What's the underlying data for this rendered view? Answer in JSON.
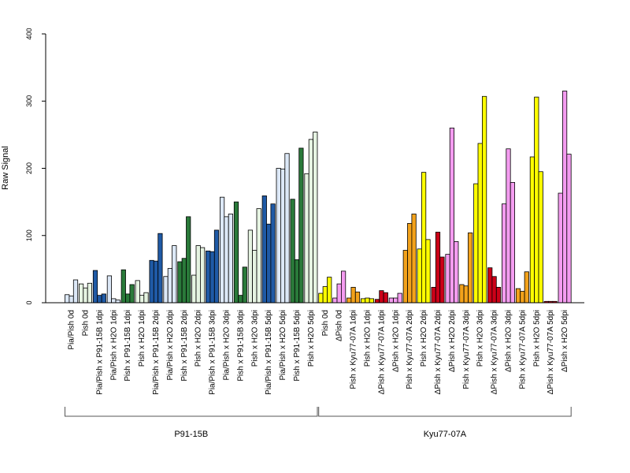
{
  "chart_data": {
    "type": "bar",
    "ylabel": "Raw Signal",
    "ylim": [
      0,
      400
    ],
    "yticks": [
      "0",
      "100",
      "200",
      "300",
      "400"
    ],
    "bars_per_group": 3,
    "colors": {
      "blue": "#1f5aa6",
      "light_blue": "#dce8f7",
      "green": "#2a7a3a",
      "light_green": "#e6f4e2",
      "yellow": "#ffff00",
      "orange": "#f3a21b",
      "red": "#cc0018",
      "pink": "#f49cf0"
    },
    "categories": [
      {
        "label": "Pia/Pish 0d",
        "color": "light_blue",
        "values": [
          12,
          10,
          34
        ]
      },
      {
        "label": "Pish 0d",
        "color": "light_green",
        "values": [
          28,
          22,
          29
        ]
      },
      {
        "label": "Pia/Pish x P91-15B 1dpi",
        "color": "blue",
        "values": [
          48,
          11,
          13
        ]
      },
      {
        "label": "Pia/Pish x H2O 1dpi",
        "color": "light_blue",
        "values": [
          40,
          6,
          4
        ]
      },
      {
        "label": "Pish x P91-15B 1dpi",
        "color": "green",
        "values": [
          49,
          13,
          27
        ]
      },
      {
        "label": "Pish x H2O 1dpi",
        "color": "light_green",
        "values": [
          33,
          11,
          15
        ]
      },
      {
        "label": "Pia/Pish x P91-15B 2dpi",
        "color": "blue",
        "values": [
          63,
          62,
          103
        ]
      },
      {
        "label": "Pia/Pish x H2O 2dpi",
        "color": "light_blue",
        "values": [
          39,
          51,
          85
        ]
      },
      {
        "label": "Pish x P91-15B 2dpi",
        "color": "green",
        "values": [
          61,
          66,
          128
        ]
      },
      {
        "label": "Pish x H2O 2dpi",
        "color": "light_green",
        "values": [
          41,
          85,
          82
        ]
      },
      {
        "label": "Pia/Pish x P91-15B 3dpi",
        "color": "blue",
        "values": [
          77,
          76,
          108
        ]
      },
      {
        "label": "Pia/Pish x H2O 3dpi",
        "color": "light_blue",
        "values": [
          157,
          128,
          132
        ]
      },
      {
        "label": "Pish x P91-15B 3dpi",
        "color": "green",
        "values": [
          150,
          11,
          53
        ]
      },
      {
        "label": "Pish x H2O 3dpi",
        "color": "light_green",
        "values": [
          108,
          78,
          140
        ]
      },
      {
        "label": "Pia/Pish x P91-15B 5dpi",
        "color": "blue",
        "values": [
          159,
          117,
          147
        ]
      },
      {
        "label": "Pia/Pish x H2O 5dpi",
        "color": "light_blue",
        "values": [
          200,
          199,
          222
        ]
      },
      {
        "label": "Pish x P91-15B 5dpi",
        "color": "green",
        "values": [
          154,
          64,
          230
        ]
      },
      {
        "label": "Pish x H2O 5dpi",
        "color": "light_green",
        "values": [
          192,
          243,
          254
        ]
      },
      {
        "label": "Pish 0d",
        "color": "yellow",
        "values": [
          14,
          24,
          38
        ]
      },
      {
        "label": "ΔPish 0d",
        "color": "pink",
        "values": [
          7,
          28,
          47
        ]
      },
      {
        "label": "Pish x Kyu77-07A 1dpi",
        "color": "orange",
        "values": [
          7,
          23,
          16
        ]
      },
      {
        "label": "Pish x H2O 1dpi",
        "color": "yellow",
        "values": [
          6,
          7,
          6
        ]
      },
      {
        "label": "ΔPish x Kyu77-07A 1dpi",
        "color": "red",
        "values": [
          5,
          18,
          15
        ]
      },
      {
        "label": "ΔPish x H2O 1dpi",
        "color": "pink",
        "values": [
          7,
          7,
          14
        ]
      },
      {
        "label": "Pish x Kyu77-07A 2dpi",
        "color": "orange",
        "values": [
          78,
          118,
          132
        ]
      },
      {
        "label": "Pish x H2O 2dpi",
        "color": "yellow",
        "values": [
          80,
          194,
          94
        ]
      },
      {
        "label": "ΔPish x Kyu77-07A 2dpi",
        "color": "red",
        "values": [
          23,
          105,
          68
        ]
      },
      {
        "label": "ΔPish x H2O 2dpi",
        "color": "pink",
        "values": [
          72,
          260,
          91
        ]
      },
      {
        "label": "Pish x Kyu77-07A 3dpi",
        "color": "orange",
        "values": [
          27,
          25,
          104
        ]
      },
      {
        "label": "Pish x H2O 3dpi",
        "color": "yellow",
        "values": [
          177,
          237,
          307
        ]
      },
      {
        "label": "ΔPish x Kyu77-07A 3dpi",
        "color": "red",
        "values": [
          52,
          39,
          23
        ]
      },
      {
        "label": "ΔPish x H2O 3dpi",
        "color": "pink",
        "values": [
          147,
          229,
          179
        ]
      },
      {
        "label": "Pish x Kyu77-07A 5dpi",
        "color": "orange",
        "values": [
          21,
          17,
          46
        ]
      },
      {
        "label": "Pish x H2O 5dpi",
        "color": "yellow",
        "values": [
          217,
          306,
          195
        ]
      },
      {
        "label": "ΔPish x Kyu77-07A 5dpi",
        "color": "red",
        "values": [
          2,
          2,
          2
        ]
      },
      {
        "label": "ΔPish x H2O 5dpi",
        "color": "pink",
        "values": [
          163,
          315,
          221
        ]
      }
    ],
    "groups": [
      {
        "label": "P91-15B",
        "from": 0,
        "to": 17
      },
      {
        "label": "Kyu77-07A",
        "from": 18,
        "to": 35
      }
    ]
  }
}
